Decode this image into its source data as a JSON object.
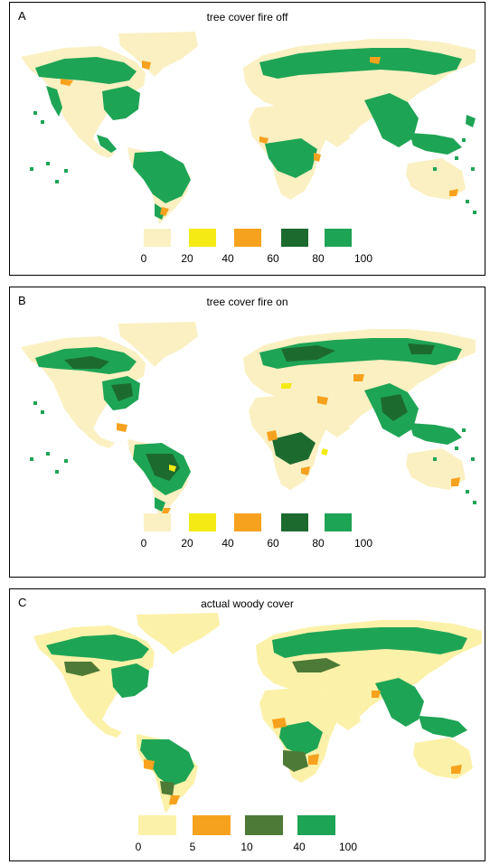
{
  "panels": [
    {
      "letter": "A",
      "title": "tree cover fire off",
      "legend": {
        "colors": [
          "#fbf0c2",
          "#f4ea14",
          "#f7a21e",
          "#1d6a2f",
          "#1ea455"
        ],
        "ticks": [
          "0",
          "20",
          "40",
          "60",
          "80",
          "100"
        ]
      }
    },
    {
      "letter": "B",
      "title": "tree cover fire on",
      "legend": {
        "colors": [
          "#fbf0c2",
          "#f4ea14",
          "#f7a21e",
          "#1d6a2f",
          "#1ea455"
        ],
        "ticks": [
          "0",
          "20",
          "40",
          "60",
          "80",
          "100"
        ]
      }
    },
    {
      "letter": "C",
      "title": "actual woody cover",
      "legend": {
        "colors": [
          "#fcf1a8",
          "#f7a21e",
          "#4d7a36",
          "#1ea455"
        ],
        "ticks": [
          "0",
          "5",
          "10",
          "40",
          "100"
        ]
      }
    }
  ],
  "colors": {
    "land_light": "#fbf0c2",
    "forest_green": "#1ea455",
    "forest_dark": "#1d6a2f",
    "savanna_orange": "#f7a21e",
    "savanna_yellow": "#f4ea14",
    "actual_land": "#fcf1a8",
    "actual_mid": "#4d7a36"
  }
}
